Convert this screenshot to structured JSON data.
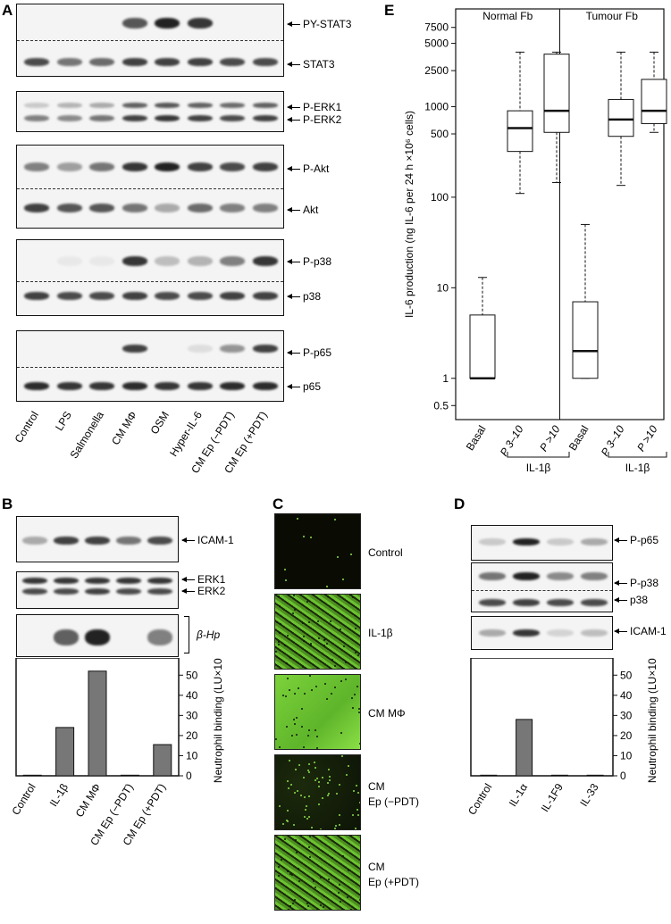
{
  "panels": {
    "a": "A",
    "b": "B",
    "c": "C",
    "d": "D",
    "e": "E"
  },
  "panel_a": {
    "labels": [
      "PY-STAT3",
      "STAT3",
      "P-ERK1",
      "P-ERK2",
      "P-Akt",
      "Akt",
      "P-p38",
      "p38",
      "P-p65",
      "p65"
    ],
    "lanes": [
      "Control",
      "LPS",
      "Salmonella",
      "CM MΦ",
      "OSM",
      "Hyper-IL-6",
      "CM Ep (−PDT)",
      "CM Ep (+PDT)"
    ]
  },
  "panel_b": {
    "labels": [
      "ICAM-1",
      "ERK1",
      "ERK2",
      "β-Hp"
    ],
    "lanes": [
      "Control",
      "IL-1β",
      "CM MΦ",
      "CM Ep (−PDT)",
      "CM Ep (+PDT)"
    ],
    "ylabel": "Neutrophil binding (LU×10⁷)",
    "ticks": [
      "0",
      "10",
      "20",
      "30",
      "40",
      "50"
    ]
  },
  "panel_c": {
    "labels": [
      "Control",
      "IL-1β",
      "CM MΦ",
      "CM Ep (−PDT)",
      "CM Ep (+PDT)"
    ],
    "label_lines": [
      [
        "Control"
      ],
      [
        "IL-1β"
      ],
      [
        "CM MΦ"
      ],
      [
        "CM",
        "Ep (−PDT)"
      ],
      [
        "CM",
        "Ep (+PDT)"
      ]
    ]
  },
  "panel_d": {
    "labels": [
      "P-p65",
      "P-p38",
      "p38",
      "ICAM-1"
    ],
    "lanes": [
      "Control",
      "IL-1α",
      "IL-1F9",
      "IL-33"
    ],
    "ylabel": "Neutrophil binding (LU×10⁷)",
    "ticks": [
      "0",
      "10",
      "20",
      "30",
      "40",
      "50"
    ]
  },
  "panel_e": {
    "groups": [
      "Normal Fb",
      "Tumour Fb"
    ],
    "ylabel": "IL-6 production (ng IL-6 per 24 h ×10⁶ cells)",
    "yticks": [
      "0.5",
      "1",
      "10",
      "100",
      "500",
      "1000",
      "2500",
      "5000",
      "7500"
    ],
    "xlabels": [
      "Basal",
      "P 3–10",
      "P >10",
      "Basal",
      "P 3–10",
      "P >10"
    ],
    "treatment": "IL-1β"
  },
  "chart_data": [
    {
      "type": "bar",
      "panel": "B",
      "categories": [
        "Control",
        "IL-1β",
        "CM MΦ",
        "CM Ep (−PDT)",
        "CM Ep (+PDT)"
      ],
      "values": [
        0.3,
        24,
        52,
        0.3,
        15.5
      ],
      "ylabel": "Neutrophil binding (LU×10⁷)",
      "ylim": [
        0,
        55
      ]
    },
    {
      "type": "bar",
      "panel": "D",
      "categories": [
        "Control",
        "IL-1α",
        "IL-1F9",
        "IL-33"
      ],
      "values": [
        0.3,
        28,
        0.3,
        0.3
      ],
      "ylabel": "Neutrophil binding (LU×10⁷)",
      "ylim": [
        0,
        55
      ]
    },
    {
      "type": "box",
      "panel": "E",
      "log_scale": true,
      "ylim": [
        0.35,
        12000
      ],
      "groups": [
        "Normal Fb",
        "Tumour Fb"
      ],
      "categories": [
        "Basal",
        "P 3–10",
        "P >10",
        "Basal",
        "P 3–10",
        "P >10"
      ],
      "boxes": [
        {
          "min": 1,
          "q1": 1,
          "median": 1,
          "q3": 5,
          "max": 13
        },
        {
          "min": 110,
          "q1": 320,
          "median": 580,
          "q3": 900,
          "max": 4000
        },
        {
          "min": 145,
          "q1": 520,
          "median": 900,
          "q3": 3800,
          "max": 4000
        },
        {
          "min": 1,
          "q1": 1,
          "median": 2,
          "q3": 7,
          "max": 50
        },
        {
          "min": 135,
          "q1": 470,
          "median": 720,
          "q3": 1200,
          "max": 4000
        },
        {
          "min": 520,
          "q1": 650,
          "median": 900,
          "q3": 2000,
          "max": 4000
        }
      ],
      "ylabel": "IL-6 production (ng IL-6 per 24 h ×10⁶ cells)"
    }
  ]
}
